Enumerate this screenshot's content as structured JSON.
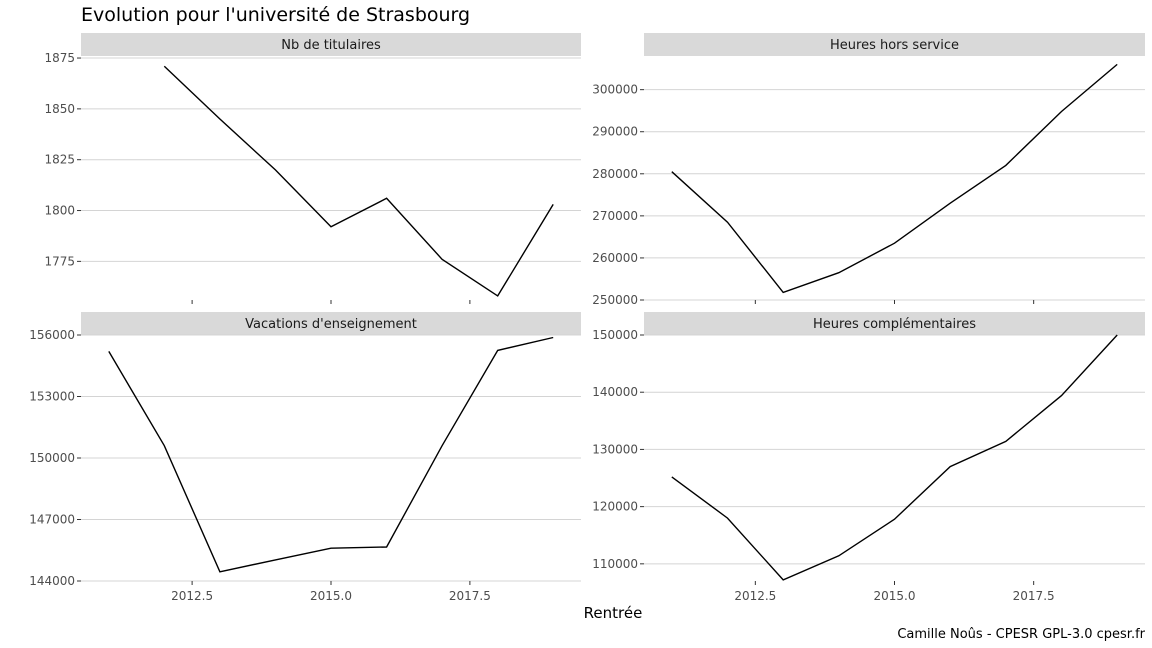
{
  "title": "Evolution pour l'université de Strasbourg",
  "xlabel": "Rentrée",
  "caption": "Camille Noûs - CPESR GPL-3.0 cpesr.fr",
  "chart_data": [
    {
      "type": "line",
      "facet": "Nb de titulaires",
      "x": [
        2012,
        2013,
        2014,
        2015,
        2016,
        2017,
        2018,
        2019
      ],
      "y": [
        1871,
        1845,
        1820,
        1792,
        1806,
        1776,
        1758,
        1803
      ],
      "xlim": [
        2010.5,
        2019.5
      ],
      "ylim": [
        1756,
        1876
      ],
      "xticks": [
        2012.5,
        2015.0,
        2017.5
      ],
      "yticks": [
        1775,
        1800,
        1825,
        1850,
        1875
      ],
      "grid": true
    },
    {
      "type": "line",
      "facet": "Heures hors service",
      "x": [
        2011,
        2012,
        2013,
        2014,
        2015,
        2016,
        2017,
        2018,
        2019
      ],
      "y": [
        280500,
        268500,
        251800,
        256500,
        263500,
        273000,
        282000,
        294800,
        306000
      ],
      "xlim": [
        2010.5,
        2019.5
      ],
      "ylim": [
        250000,
        308000
      ],
      "xticks": [
        2012.5,
        2015.0,
        2017.5
      ],
      "yticks": [
        250000,
        260000,
        270000,
        280000,
        290000,
        300000
      ],
      "grid": true
    },
    {
      "type": "line",
      "facet": "Vacations d'enseignement",
      "x": [
        2011,
        2012,
        2013,
        2014,
        2015,
        2016,
        2017,
        2018,
        2019
      ],
      "y": [
        155200,
        150600,
        144450,
        145030,
        145600,
        145660,
        150600,
        155250,
        155880
      ],
      "xlim": [
        2010.5,
        2019.5
      ],
      "ylim": [
        144000,
        156000
      ],
      "xticks": [
        2012.5,
        2015.0,
        2017.5
      ],
      "yticks": [
        144000,
        147000,
        150000,
        153000,
        156000
      ],
      "grid": true
    },
    {
      "type": "line",
      "facet": "Heures complémentaires",
      "x": [
        2011,
        2012,
        2013,
        2014,
        2015,
        2016,
        2017,
        2018,
        2019
      ],
      "y": [
        125200,
        118000,
        107200,
        111400,
        117800,
        127000,
        131400,
        139400,
        150000
      ],
      "xlim": [
        2010.5,
        2019.5
      ],
      "ylim": [
        107000,
        150000
      ],
      "xticks": [
        2012.5,
        2015.0,
        2017.5
      ],
      "yticks": [
        110000,
        120000,
        130000,
        140000,
        150000
      ],
      "grid": true
    }
  ]
}
